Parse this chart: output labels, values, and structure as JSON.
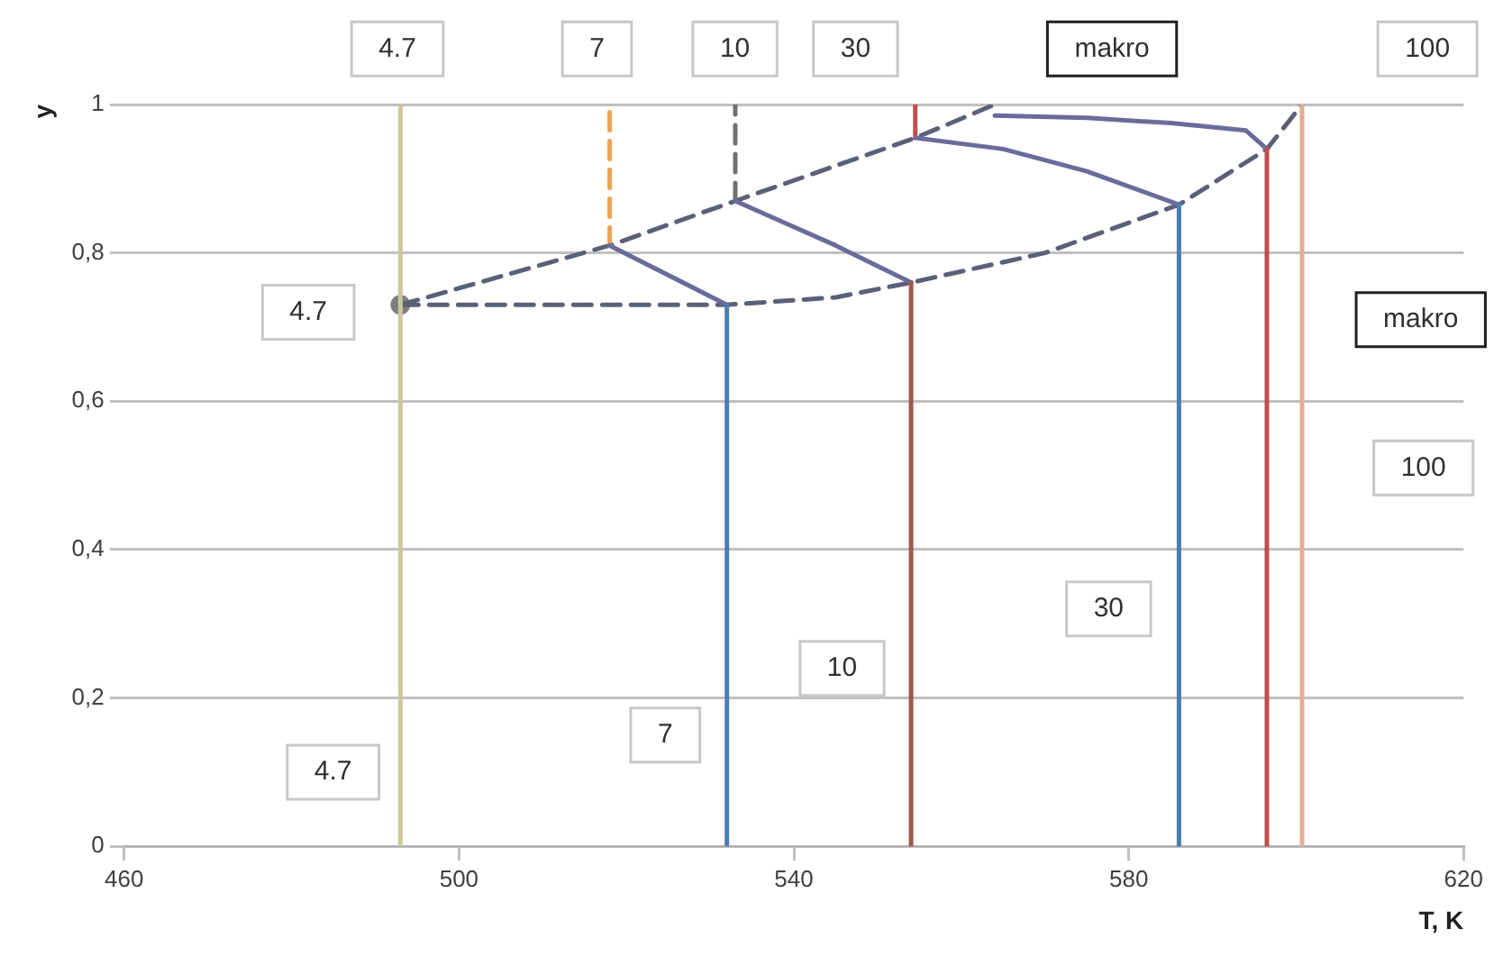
{
  "chart_data": {
    "type": "line",
    "xlabel": "T, K",
    "ylabel": "y",
    "xlim": [
      460,
      620
    ],
    "ylim": [
      0,
      1
    ],
    "xticks": [
      460,
      500,
      540,
      580,
      620
    ],
    "yticks": [
      0,
      {
        "value": 0.2,
        "label": "0,2"
      },
      {
        "value": 0.4,
        "label": "0,4"
      },
      {
        "value": 0.6,
        "label": "0,6"
      },
      {
        "value": 0.8,
        "label": "0,8"
      },
      1
    ],
    "grid": "y",
    "line_style": "solid",
    "series": [
      {
        "color": "#c9c99b",
        "x": [
          493,
          493
        ],
        "values": [
          0,
          1
        ]
      },
      {
        "type": "line",
        "color": "#4a7eb0",
        "x": [
          532,
          532
        ],
        "values": [
          0,
          0.73
        ]
      },
      {
        "type": "line",
        "color": "#6b6b9b",
        "x": [
          532,
          518
        ],
        "values": [
          0.73,
          0.81
        ]
      },
      {
        "type": "line",
        "color": "#f0a050",
        "line_style": "dashed",
        "x": [
          518,
          518
        ],
        "values": [
          0.81,
          1
        ]
      },
      {
        "type": "line",
        "color": "#a0584a",
        "x": [
          554,
          554
        ],
        "values": [
          0,
          0.76
        ]
      },
      {
        "type": "line",
        "color": "#6b6b9b",
        "x": [
          554,
          545,
          533
        ],
        "values": [
          0.76,
          0.81,
          0.87
        ]
      },
      {
        "type": "line",
        "color": "#707070",
        "line_style": "dashed",
        "x": [
          533,
          533
        ],
        "values": [
          0.87,
          1
        ]
      },
      {
        "type": "line",
        "color": "#4a7eb0",
        "x": [
          586,
          586
        ],
        "values": [
          0,
          0.865
        ]
      },
      {
        "type": "line",
        "color": "#6b6b9b",
        "x": [
          586,
          575,
          565,
          554.5
        ],
        "values": [
          0.865,
          0.91,
          0.94,
          0.955
        ]
      },
      {
        "type": "line",
        "color": "#c0504d",
        "x": [
          554.5,
          554.5
        ],
        "values": [
          0.955,
          1
        ]
      },
      {
        "type": "line",
        "color": "#c0504d",
        "x": [
          596.5,
          596.5
        ],
        "values": [
          0,
          0.94
        ]
      },
      {
        "type": "line",
        "color": "#6b6b9b",
        "x": [
          596.5,
          594,
          585,
          575,
          564
        ],
        "values": [
          0.94,
          0.965,
          0.975,
          0.982,
          0.985
        ]
      },
      {
        "type": "line",
        "color": "#e0b090",
        "x": [
          600.7,
          600.7
        ],
        "values": [
          0,
          1
        ]
      },
      {
        "type": "line",
        "color": "#5b6078",
        "line_style": "dashed",
        "x": [
          493,
          510,
          532,
          545,
          554,
          570,
          586,
          596.5,
          600.7
        ],
        "values": [
          0.73,
          0.73,
          0.73,
          0.74,
          0.76,
          0.8,
          0.865,
          0.94,
          1
        ]
      },
      {
        "type": "line",
        "color": "#5b6078",
        "line_style": "dashed",
        "x": [
          493,
          518,
          533,
          554.5,
          564
        ],
        "values": [
          0.73,
          0.81,
          0.87,
          0.955,
          1
        ]
      },
      {
        "type": "scatter",
        "color": "#808080",
        "marker": "circle",
        "x": [
          493
        ],
        "values": [
          0.73
        ]
      }
    ],
    "annotations": [
      "4.7",
      "4.7",
      "4.7",
      "7",
      "7",
      "10",
      "10",
      "30",
      "30",
      "makro",
      "100",
      "makro",
      "100"
    ]
  }
}
